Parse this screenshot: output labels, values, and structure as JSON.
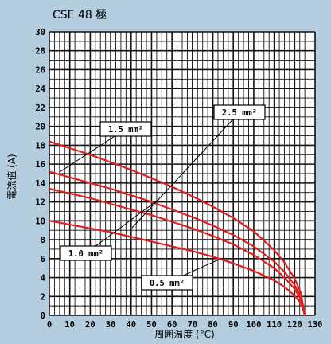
{
  "chart_data": {
    "type": "line",
    "title": "CSE 48 極",
    "ylabel": "電流值 (A)",
    "xlabel": "周囲温度 (°C)",
    "xlim": [
      0,
      130
    ],
    "ylim": [
      0,
      30
    ],
    "x_ticks": [
      "0",
      "10",
      "20",
      "30",
      "40",
      "50",
      "60",
      "70",
      "80",
      "90",
      "100",
      "110",
      "120",
      "130"
    ],
    "y_ticks": [
      "0",
      "2",
      "4",
      "6",
      "8",
      "10",
      "12",
      "14",
      "16",
      "18",
      "20",
      "22",
      "24",
      "26",
      "28",
      "30"
    ],
    "grid": true,
    "colors": {
      "background": "#b4cee0",
      "line": "#e02020",
      "grid": "#111111",
      "plot_bg": "#ffffff"
    },
    "series": [
      {
        "name": "2.5 mm²",
        "x": [
          0,
          10,
          20,
          30,
          40,
          50,
          60,
          70,
          80,
          90,
          100,
          110,
          115,
          120,
          123,
          125
        ],
        "y": [
          18.4,
          17.7,
          17.0,
          16.2,
          15.4,
          14.5,
          13.6,
          12.6,
          11.5,
          10.3,
          8.9,
          6.9,
          5.6,
          3.9,
          2.4,
          0
        ]
      },
      {
        "name": "1.5 mm²",
        "x": [
          0,
          10,
          20,
          30,
          40,
          50,
          60,
          70,
          80,
          90,
          100,
          110,
          115,
          120,
          123,
          125
        ],
        "y": [
          15.2,
          14.6,
          14.0,
          13.4,
          12.7,
          12.0,
          11.2,
          10.4,
          9.5,
          8.5,
          7.3,
          5.7,
          4.6,
          3.2,
          2.0,
          0
        ]
      },
      {
        "name": "1.0 mm²",
        "x": [
          0,
          10,
          20,
          30,
          40,
          50,
          60,
          70,
          80,
          90,
          100,
          110,
          115,
          120,
          123,
          125
        ],
        "y": [
          13.4,
          12.9,
          12.4,
          11.8,
          11.2,
          10.6,
          9.9,
          9.2,
          8.4,
          7.5,
          6.4,
          5.0,
          4.0,
          2.8,
          1.7,
          0
        ]
      },
      {
        "name": "0.5 mm²",
        "x": [
          0,
          10,
          20,
          30,
          40,
          50,
          60,
          70,
          80,
          90,
          100,
          110,
          115,
          120,
          123,
          125
        ],
        "y": [
          10.0,
          9.6,
          9.2,
          8.8,
          8.3,
          7.8,
          7.3,
          6.8,
          6.2,
          5.5,
          4.7,
          3.7,
          3.0,
          2.1,
          1.3,
          0
        ]
      }
    ],
    "annotations": [
      {
        "label": "1.5 mm²",
        "series": 1
      },
      {
        "label": "2.5 mm²",
        "series": 0
      },
      {
        "label": "1.0 mm²",
        "series": 2
      },
      {
        "label": "0.5 mm²",
        "series": 3
      }
    ]
  }
}
